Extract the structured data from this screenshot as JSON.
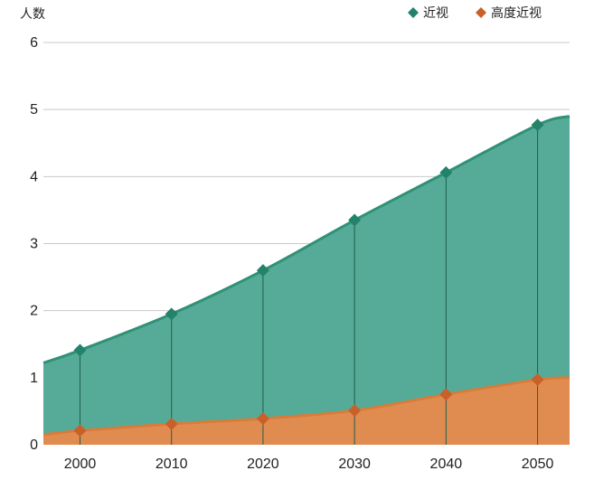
{
  "chart_data": {
    "type": "area",
    "ylabel": "人数",
    "ylim": [
      0,
      6
    ],
    "yticks": [
      0,
      1,
      2,
      3,
      4,
      5,
      6
    ],
    "x": [
      2000,
      2010,
      2020,
      2030,
      2040,
      2050
    ],
    "xlim": [
      1996,
      2053.5
    ],
    "grid": true,
    "legend_position": "top-right",
    "series": [
      {
        "name": "近视",
        "values": [
          1.41,
          1.95,
          2.6,
          3.35,
          4.06,
          4.77
        ],
        "line_start": 1.22,
        "line_end": 4.9,
        "color": "#55ab97",
        "line_color": "#2f9176",
        "marker_color": "#23826a"
      },
      {
        "name": "高度近视",
        "values": [
          0.21,
          0.31,
          0.39,
          0.51,
          0.75,
          0.97
        ],
        "line_start": 0.15,
        "line_end": 1.0,
        "color": "#e08c51",
        "line_color": "#d97c3a",
        "marker_color": "#c9602a"
      }
    ]
  }
}
